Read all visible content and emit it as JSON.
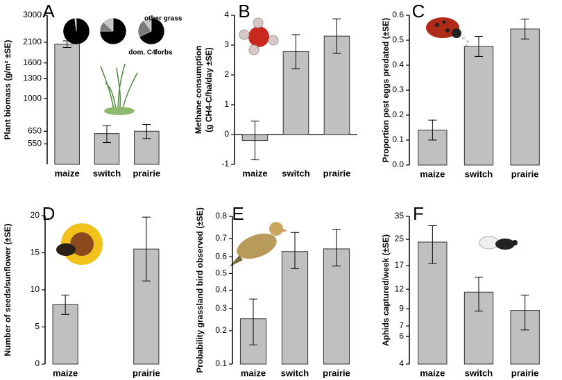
{
  "chart_data": [
    {
      "type": "bar",
      "label": "A",
      "y_label": [
        "Plant biomass (g/m² ±SE)"
      ],
      "scale": "log",
      "categories": [
        "maize",
        "switch",
        "prairie"
      ],
      "values": [
        2050,
        630,
        650
      ],
      "errors": [
        90,
        70,
        60
      ],
      "color": "#c0c0c0",
      "ylim": [
        420,
        3000
      ],
      "yticks": [
        550,
        650,
        1000,
        1300,
        1600,
        2100,
        3000
      ],
      "pies": {
        "names": [
          "dom. C4",
          "other grass",
          "forbs"
        ],
        "colors": [
          "#000000",
          "#7a7a7a",
          "#c4c4c4"
        ],
        "values": [
          [
            98,
            1,
            1
          ],
          [
            75,
            12,
            13
          ],
          [
            68,
            22,
            10
          ]
        ]
      }
    },
    {
      "type": "bar",
      "label": "B",
      "y_label": [
        "Methane consumption",
        "(g CH4-C/ha/day ±SE)"
      ],
      "scale": "linear",
      "categories": [
        "maize",
        "switch",
        "prairie"
      ],
      "values": [
        -0.2,
        2.78,
        3.3
      ],
      "errors": [
        0.65,
        0.57,
        0.58
      ],
      "color": "#c0c0c0",
      "ylim": [
        -1,
        4
      ],
      "yticks": [
        -1,
        0,
        1,
        2,
        3,
        4
      ],
      "zero_line": true
    },
    {
      "type": "bar",
      "label": "C",
      "y_label": [
        "Proportion pest eggs predated (±SE)"
      ],
      "scale": "linear",
      "categories": [
        "maize",
        "switch",
        "prairie"
      ],
      "values": [
        0.14,
        0.475,
        0.545
      ],
      "errors": [
        0.04,
        0.04,
        0.04
      ],
      "color": "#c0c0c0",
      "ylim": [
        0,
        0.6
      ],
      "yticks": [
        {
          "value": 0,
          "label": "0.0"
        },
        0.1,
        0.2,
        0.3,
        0.4,
        0.5,
        0.6
      ]
    },
    {
      "type": "bar",
      "label": "D",
      "y_label": [
        "Number of seeds/sunflower (±SE)"
      ],
      "scale": "linear",
      "categories": [
        "maize",
        null,
        "prairie"
      ],
      "values": [
        8,
        null,
        15.5
      ],
      "errors": [
        1.3,
        null,
        4.3
      ],
      "color": "#c0c0c0",
      "ylim": [
        0,
        20
      ],
      "yticks": [
        0,
        5,
        10,
        15,
        20
      ]
    },
    {
      "type": "bar",
      "label": "E",
      "y_label": [
        "Probability grassland bird observed (±SE)"
      ],
      "scale": "logit",
      "categories": [
        "maize",
        "switch",
        "prairie"
      ],
      "values": [
        0.25,
        0.63,
        0.645
      ],
      "errors": [
        0.1,
        0.1,
        0.1
      ],
      "color": "#c0c0c0",
      "ylim": [
        0.1,
        0.8
      ],
      "yticks": [
        0.1,
        0.2,
        0.3,
        0.4,
        0.5,
        0.6,
        0.7,
        0.8
      ]
    },
    {
      "type": "bar",
      "label": "F",
      "y_label": [
        "Aphids captured/week (±SE)"
      ],
      "scale": "log",
      "categories": [
        "maize",
        "switch",
        "prairie"
      ],
      "values": [
        24,
        11.5,
        8.8
      ],
      "errors": [
        6.5,
        2.8,
        2.2
      ],
      "color": "#c0c0c0",
      "ylim": [
        4,
        35
      ],
      "yticks": [
        4,
        6,
        7,
        9,
        12,
        17,
        25,
        35
      ]
    }
  ]
}
